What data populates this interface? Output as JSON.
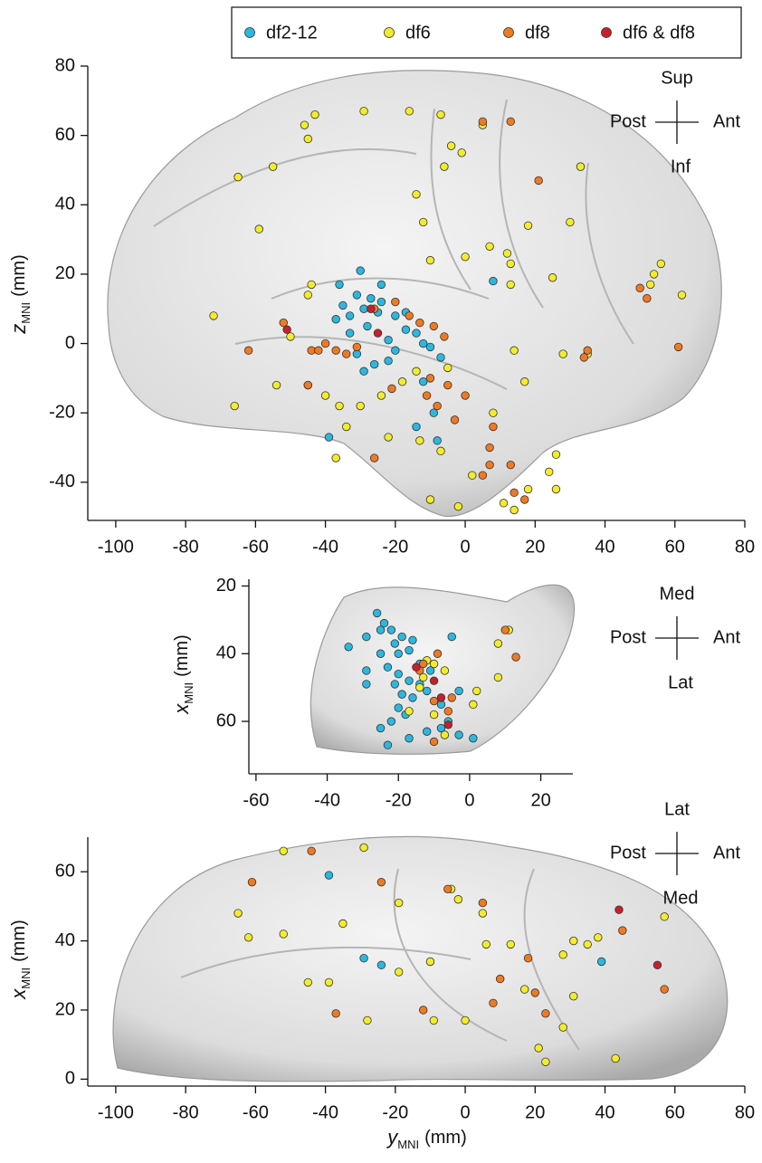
{
  "legend": {
    "position": "top-right",
    "series": [
      {
        "name": "df2-12",
        "color": "#2bb8e0"
      },
      {
        "name": "df6",
        "color": "#f2ec2c"
      },
      {
        "name": "df8",
        "color": "#ef7a22"
      },
      {
        "name": "df6 & df8",
        "color": "#c8202a"
      }
    ]
  },
  "chart_data": [
    {
      "type": "scatter",
      "ylabel": {
        "symbol": "z",
        "sub": "MNI",
        "unit": "(mm)"
      },
      "orientation": {
        "top": "Sup",
        "left": "Post",
        "right": "Ant",
        "bottom": "Inf"
      },
      "xlim": [
        -108,
        80
      ],
      "ylim": [
        -51,
        80
      ],
      "xticks": [
        -100,
        -80,
        -60,
        -40,
        -20,
        0,
        20,
        40,
        60,
        80
      ],
      "yticks": [
        -40,
        -20,
        0,
        20,
        40,
        60,
        80
      ],
      "series": [
        {
          "x": [
            -24,
            -28,
            -33,
            -33,
            -24,
            -17,
            -22,
            -10,
            8,
            -39,
            -30,
            -36,
            -31,
            -27,
            -25,
            -35,
            -29,
            -20,
            -14,
            -31,
            -26,
            -29,
            -12,
            -14,
            -9,
            -8,
            -17,
            -20,
            -12,
            -7,
            -22,
            -37
          ],
          "y": [
            17,
            5,
            8,
            3,
            12,
            9,
            -5,
            -1,
            18,
            -27,
            21,
            17,
            14,
            13,
            9,
            11,
            10,
            8,
            3,
            -3,
            -6,
            -8,
            -11,
            -24,
            -20,
            -28,
            4,
            -2,
            0,
            -4,
            1,
            7
          ]
        },
        {
          "x": [
            -46,
            -43,
            -45,
            -65,
            -55,
            -29,
            -16,
            -7,
            -4,
            -1,
            -6,
            5,
            33,
            -14,
            -12,
            -59,
            -72,
            -44,
            -45,
            -50,
            -45,
            -54,
            -66,
            -36,
            -34,
            -22,
            -10,
            0,
            7,
            12,
            13,
            18,
            30,
            25,
            13,
            14,
            -5,
            17,
            8,
            28,
            35,
            56,
            54,
            53,
            62,
            24,
            26,
            18,
            26,
            11,
            14,
            -2,
            2,
            -10,
            -13,
            -7,
            -14,
            -24,
            -18,
            -37,
            -40,
            -30
          ],
          "y": [
            63,
            66,
            59,
            48,
            51,
            67,
            67,
            66,
            57,
            55,
            51,
            63,
            51,
            43,
            35,
            33,
            8,
            17,
            14,
            2,
            -12,
            -12,
            -18,
            -18,
            -24,
            -27,
            24,
            25,
            28,
            26,
            23,
            34,
            35,
            19,
            17,
            -2,
            -7,
            -11,
            -20,
            -3,
            -3,
            23,
            20,
            17,
            14,
            -37,
            -32,
            -42,
            -42,
            -46,
            -48,
            -47,
            -38,
            -45,
            -28,
            -31,
            -8,
            -15,
            -11,
            -33,
            -15,
            -18
          ]
        },
        {
          "x": [
            5,
            13,
            21,
            50,
            52,
            61,
            35,
            34,
            -62,
            -52,
            -44,
            -42,
            -40,
            -37,
            -31,
            -34,
            -26,
            -20,
            -16,
            -13,
            -9,
            -6,
            -5,
            0,
            -10,
            -3,
            -21,
            -11,
            -8,
            8,
            7,
            13,
            7,
            5,
            14,
            17,
            -26,
            -45
          ],
          "y": [
            64,
            64,
            47,
            16,
            13,
            -1,
            -2,
            -4,
            -2,
            6,
            -2,
            -2,
            0,
            -2,
            -1,
            -3,
            10,
            12,
            8,
            6,
            5,
            2,
            -12,
            -15,
            -10,
            -22,
            -13,
            -15,
            -18,
            -24,
            -30,
            -35,
            -35,
            -38,
            -43,
            -45,
            -33,
            -12
          ]
        },
        {
          "x": [
            -51,
            -25,
            -27
          ],
          "y": [
            4,
            3,
            10
          ]
        }
      ]
    },
    {
      "type": "scatter",
      "ylabel": {
        "symbol": "x",
        "sub": "MNI",
        "unit": "(mm)"
      },
      "orientation": {
        "top": "Med",
        "left": "Post",
        "right": "Ant",
        "bottom": "Lat"
      },
      "xlim": [
        -62,
        29
      ],
      "ylim": [
        18,
        75.5
      ],
      "yinvert": true,
      "xticks": [
        -60,
        -40,
        -20,
        0,
        20
      ],
      "yticks": [
        20,
        40,
        60
      ],
      "series": [
        {
          "x": [
            -25,
            -29,
            -21,
            -17,
            -29,
            -29,
            -20,
            -17,
            -16,
            -11,
            -14,
            -12,
            -3,
            -6,
            -8,
            -8,
            -3,
            1,
            -18,
            -14,
            -34,
            -26,
            -24,
            -22,
            -19,
            -16,
            -25,
            -23,
            -20,
            -19,
            -22,
            -25,
            -23,
            -17,
            -12,
            -5,
            -20,
            -21
          ],
          "y": [
            33,
            35,
            37,
            39,
            45,
            49,
            56,
            48,
            53,
            45,
            49,
            51,
            51,
            60,
            55,
            62,
            64,
            65,
            58,
            43,
            38,
            28,
            31,
            33,
            35,
            36,
            40,
            44,
            46,
            52,
            60,
            62,
            67,
            65,
            63,
            35,
            40,
            49
          ]
        },
        {
          "x": [
            -12,
            -13,
            -10,
            -14,
            -7,
            1,
            2,
            8,
            8,
            11,
            -7,
            -10,
            -17
          ],
          "y": [
            42,
            47,
            43,
            50,
            45,
            55,
            51,
            37,
            47,
            33,
            64,
            58,
            57
          ]
        },
        {
          "x": [
            -13,
            -14,
            -9,
            10,
            13,
            -10,
            -6,
            -10,
            -5
          ],
          "y": [
            43,
            45,
            40,
            33,
            41,
            54,
            57,
            66,
            53
          ]
        },
        {
          "x": [
            -15,
            -10,
            -8,
            -6
          ],
          "y": [
            44,
            48,
            53,
            61
          ]
        }
      ]
    },
    {
      "type": "scatter",
      "xlabel": {
        "symbol": "y",
        "sub": "MNI",
        "unit": "(mm)"
      },
      "ylabel": {
        "symbol": "x",
        "sub": "MNI",
        "unit": "(mm)"
      },
      "orientation": {
        "top": "Lat",
        "left": "Post",
        "right": "Ant",
        "bottom": "Med"
      },
      "xlim": [
        -108,
        80
      ],
      "ylim": [
        -2,
        70
      ],
      "xticks": [
        -100,
        -80,
        -60,
        -40,
        -20,
        0,
        20,
        40,
        60,
        80
      ],
      "yticks": [
        0,
        20,
        40,
        60
      ],
      "series": [
        {
          "x": [
            -39,
            -29,
            39,
            -24
          ],
          "y": [
            59,
            35,
            34,
            33
          ]
        },
        {
          "x": [
            -52,
            -29,
            -19,
            -65,
            -62,
            -52,
            -35,
            -45,
            -39,
            -28,
            -19,
            -10,
            -4,
            -2,
            5,
            6,
            13,
            17,
            23,
            21,
            28,
            28,
            31,
            35,
            38,
            31,
            43,
            57,
            0,
            -9
          ],
          "y": [
            66,
            67,
            51,
            48,
            41,
            42,
            45,
            28,
            28,
            17,
            31,
            34,
            55,
            52,
            48,
            39,
            39,
            26,
            5,
            9,
            15,
            36,
            40,
            39,
            41,
            24,
            6,
            47,
            17,
            17
          ]
        },
        {
          "x": [
            -61,
            -44,
            -24,
            -5,
            5,
            10,
            18,
            8,
            20,
            23,
            45,
            57,
            -37,
            -12
          ],
          "y": [
            57,
            66,
            57,
            55,
            51,
            29,
            35,
            22,
            25,
            19,
            43,
            26,
            19,
            20
          ]
        },
        {
          "x": [
            44,
            55
          ],
          "y": [
            49,
            33
          ]
        }
      ]
    }
  ]
}
